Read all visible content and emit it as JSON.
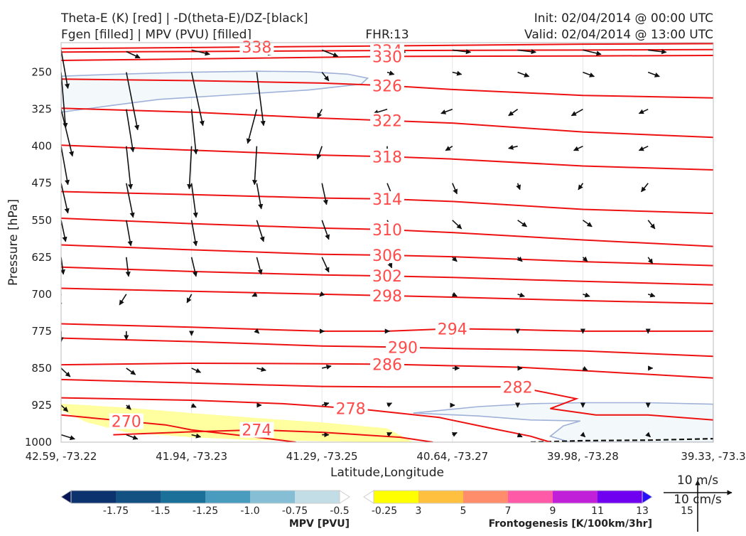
{
  "header": {
    "title_left_line1": "Theta-E (K) [red] | -D(theta-E)/DZ-[black]",
    "title_left_line2": "Fgen [filled] | MPV (PVU) [filled]",
    "fhr": "FHR:13",
    "init": "Init: 02/04/2014 @ 00:00 UTC",
    "valid": "Valid: 02/04/2014 @ 13:00 UTC"
  },
  "chart_data": {
    "type": "cross-section",
    "xlabel": "Latitude,Longitude",
    "ylabel": "Pressure [hPa]",
    "x_ticks": [
      "42.59, -73.22",
      "41.94, -73.23",
      "41.29, -73.25",
      "40.64, -73.27",
      "39.98, -73.28",
      "39.33, -73.3"
    ],
    "y_ticks": [
      250,
      325,
      400,
      475,
      550,
      625,
      700,
      775,
      850,
      925,
      1000
    ],
    "ylim": [
      1000,
      190
    ],
    "theta_e_contours": [
      {
        "level": 338,
        "label": "338",
        "x": [
          0,
          1.0,
          2.7,
          4.0,
          5.0
        ],
        "p": [
          202,
          200,
          196,
          193,
          192
        ]
      },
      {
        "level": 334,
        "label": "334",
        "x": [
          0,
          1.0,
          2.5,
          4.0,
          5.0
        ],
        "p": [
          209,
          208,
          206,
          205,
          204
        ]
      },
      {
        "level": 330,
        "label": "330",
        "x": [
          0,
          1.0,
          2.5,
          4.0,
          5.0
        ],
        "p": [
          226,
          223,
          218,
          217,
          216
        ]
      },
      {
        "level": 326,
        "label": "326",
        "x": [
          0,
          1.0,
          2.0,
          2.5,
          3.0,
          4.0,
          5.0
        ],
        "p": [
          264,
          267,
          272,
          277,
          285,
          297,
          302
        ]
      },
      {
        "level": 322,
        "label": "322",
        "x": [
          0,
          1.0,
          2.0,
          2.5,
          3.0,
          4.0,
          5.0
        ],
        "p": [
          323,
          331,
          343,
          348,
          353,
          371,
          382
        ]
      },
      {
        "level": 318,
        "label": "318",
        "x": [
          0,
          1.0,
          2.0,
          2.5,
          3.0,
          4.0,
          5.0
        ],
        "p": [
          398,
          408,
          418,
          421,
          426,
          440,
          448
        ]
      },
      {
        "level": 314,
        "label": "314",
        "x": [
          0,
          1.0,
          2.0,
          2.5,
          3.0,
          4.0,
          5.0
        ],
        "p": [
          492,
          498,
          505,
          507,
          512,
          528,
          536
        ]
      },
      {
        "level": 310,
        "label": "310",
        "x": [
          0,
          1.0,
          2.0,
          2.5,
          3.0,
          4.0,
          5.0
        ],
        "p": [
          546,
          557,
          566,
          569,
          575,
          590,
          603
        ]
      },
      {
        "level": 306,
        "label": "306",
        "x": [
          0,
          1.0,
          2.0,
          2.5,
          3.0,
          4.0,
          5.0
        ],
        "p": [
          600,
          610,
          619,
          621,
          624,
          634,
          642
        ]
      },
      {
        "level": 302,
        "label": "302",
        "x": [
          0,
          1.0,
          2.0,
          2.5,
          3.0,
          4.0,
          5.0
        ],
        "p": [
          645,
          654,
          661,
          663,
          666,
          674,
          681
        ]
      },
      {
        "level": 298,
        "label": "298",
        "x": [
          0,
          1.0,
          2.0,
          2.5,
          3.0,
          4.0,
          5.0
        ],
        "p": [
          688,
          694,
          700,
          703,
          706,
          713,
          719
        ]
      },
      {
        "level": 294,
        "label": "294",
        "x": [
          0,
          1.0,
          2.0,
          2.5,
          3.0,
          3.5,
          4.0,
          5.0
        ],
        "p": [
          760,
          767,
          775,
          775,
          770,
          772,
          775,
          775
        ]
      },
      {
        "level": 290,
        "label": "290",
        "x": [
          0,
          1.0,
          2.0,
          2.5,
          3.0,
          3.5,
          4.0,
          5.0
        ],
        "p": [
          789,
          796,
          805,
          807,
          810,
          812,
          815,
          826
        ]
      },
      {
        "level": 286,
        "label": "286",
        "x": [
          0,
          1.0,
          2.0,
          2.5,
          3.0,
          3.5,
          4.0,
          5.0
        ],
        "p": [
          843,
          840,
          841,
          842,
          845,
          848,
          855,
          870
        ]
      },
      {
        "level": 282,
        "label": "282",
        "x": [
          0,
          1.0,
          2.0,
          2.5,
          3.0,
          3.5,
          3.95,
          3.75,
          4.1,
          4.5,
          5.0
        ],
        "p": [
          873,
          880,
          887,
          888,
          888,
          888,
          912,
          932,
          945,
          945,
          955
        ]
      },
      {
        "level": 278,
        "label": "278",
        "x": [
          0,
          1.0,
          1.7,
          2.3,
          2.9,
          3.3,
          3.6,
          3.75
        ],
        "p": [
          910,
          915,
          922,
          933,
          950,
          972,
          988,
          1000
        ]
      },
      {
        "level": 274,
        "label": "274",
        "x": [
          0.4,
          1.0,
          1.5,
          2.0,
          2.6,
          2.85
        ],
        "p": [
          985,
          979,
          975,
          980,
          990,
          1000
        ]
      },
      {
        "level": 270,
        "label": "270",
        "x": [
          0,
          0.4,
          0.8,
          1.0,
          1.5,
          1.8
        ],
        "p": [
          945,
          955,
          965,
          975,
          990,
          1000
        ]
      }
    ],
    "mpv_regions": [
      {
        "value": -0.25,
        "x": [
          0,
          0.42,
          1.0,
          1.5,
          1.9,
          2.2,
          2.35,
          2.3,
          1.9,
          1.3,
          0.75,
          0.4,
          0.0
        ],
        "p": [
          258,
          254,
          250,
          248,
          249,
          254,
          262,
          274,
          286,
          296,
          305,
          317,
          331
        ]
      },
      {
        "value": -0.25,
        "x": [
          2.7,
          3.2,
          3.6,
          4.0,
          4.5,
          5.0,
          5.0,
          3.9,
          3.75,
          3.85,
          3.98,
          3.6,
          3.2
        ],
        "p": [
          941,
          928,
          922,
          920,
          920,
          923,
          1000,
          1000,
          988,
          967,
          957,
          955,
          947
        ]
      }
    ],
    "fgen_regions": [
      {
        "value": 3,
        "x": [
          0,
          0.5,
          1.0,
          1.5,
          2.0,
          2.5,
          2.7,
          2.5,
          2.0,
          1.5,
          1.0,
          0.5,
          0.2,
          0.0
        ],
        "p": [
          922,
          930,
          941,
          951,
          960,
          972,
          1000,
          1000,
          998,
          996,
          990,
          980,
          960,
          935
        ]
      }
    ],
    "ddz_zero_contour": {
      "x": [
        3.6,
        4.0,
        4.5,
        5.0
      ],
      "p": [
        1000,
        997,
        996,
        993
      ]
    },
    "wind_vectors": [
      {
        "x": 0.0,
        "p": 205,
        "u": 3,
        "v": -18
      },
      {
        "x": 0.5,
        "p": 208,
        "u": 6,
        "v": -3
      },
      {
        "x": 1.0,
        "p": 205,
        "u": 8,
        "v": -2
      },
      {
        "x": 1.5,
        "p": 205,
        "u": 7,
        "v": -2
      },
      {
        "x": 2.0,
        "p": 205,
        "u": 7,
        "v": -3
      },
      {
        "x": 2.5,
        "p": 205,
        "u": 8,
        "v": -1
      },
      {
        "x": 3.0,
        "p": 205,
        "u": 8,
        "v": -1
      },
      {
        "x": 3.5,
        "p": 205,
        "u": 8,
        "v": -1
      },
      {
        "x": 4.0,
        "p": 205,
        "u": 8,
        "v": -2
      },
      {
        "x": 4.5,
        "p": 205,
        "u": 8,
        "v": -1
      },
      {
        "x": 0.0,
        "p": 250,
        "u": 2,
        "v": -26
      },
      {
        "x": 0.5,
        "p": 250,
        "u": 5,
        "v": -27
      },
      {
        "x": 1.0,
        "p": 250,
        "u": 5,
        "v": -25
      },
      {
        "x": 1.5,
        "p": 250,
        "u": 3,
        "v": -25
      },
      {
        "x": 2.0,
        "p": 250,
        "u": 3,
        "v": -4
      },
      {
        "x": 2.5,
        "p": 250,
        "u": 3,
        "v": -1
      },
      {
        "x": 3.0,
        "p": 250,
        "u": 4,
        "v": -1
      },
      {
        "x": 3.5,
        "p": 250,
        "u": 5,
        "v": -2
      },
      {
        "x": 4.0,
        "p": 250,
        "u": 5,
        "v": -2
      },
      {
        "x": 4.5,
        "p": 250,
        "u": 5,
        "v": -2
      },
      {
        "x": 0.0,
        "p": 325,
        "u": 5,
        "v": -22
      },
      {
        "x": 0.5,
        "p": 325,
        "u": 3,
        "v": -20
      },
      {
        "x": 1.0,
        "p": 325,
        "u": 2,
        "v": -21
      },
      {
        "x": 1.5,
        "p": 325,
        "u": -4,
        "v": -16
      },
      {
        "x": 2.0,
        "p": 325,
        "u": -2,
        "v": -4
      },
      {
        "x": 2.5,
        "p": 325,
        "u": -6,
        "v": -2
      },
      {
        "x": 3.0,
        "p": 325,
        "u": -5,
        "v": -2
      },
      {
        "x": 3.5,
        "p": 325,
        "u": -4,
        "v": -3
      },
      {
        "x": 4.0,
        "p": 325,
        "u": -5,
        "v": -3
      },
      {
        "x": 4.5,
        "p": 325,
        "u": -4,
        "v": -2
      },
      {
        "x": 0.0,
        "p": 400,
        "u": 3,
        "v": -18
      },
      {
        "x": 0.5,
        "p": 400,
        "u": 2,
        "v": -20
      },
      {
        "x": 1.0,
        "p": 400,
        "u": -1,
        "v": -20
      },
      {
        "x": 1.5,
        "p": 400,
        "u": -1,
        "v": -18
      },
      {
        "x": 2.0,
        "p": 400,
        "u": -2,
        "v": -6
      },
      {
        "x": 2.5,
        "p": 400,
        "u": 0,
        "v": -4
      },
      {
        "x": 3.0,
        "p": 400,
        "u": -3,
        "v": -2
      },
      {
        "x": 3.5,
        "p": 400,
        "u": -4,
        "v": -1
      },
      {
        "x": 4.0,
        "p": 400,
        "u": -4,
        "v": -2
      },
      {
        "x": 4.5,
        "p": 400,
        "u": -4,
        "v": -2
      },
      {
        "x": 0.0,
        "p": 475,
        "u": 3,
        "v": -14
      },
      {
        "x": 0.5,
        "p": 475,
        "u": 3,
        "v": -16
      },
      {
        "x": 1.0,
        "p": 475,
        "u": 2,
        "v": -16
      },
      {
        "x": 1.5,
        "p": 475,
        "u": 2,
        "v": -12
      },
      {
        "x": 2.0,
        "p": 475,
        "u": 2,
        "v": -10
      },
      {
        "x": 2.5,
        "p": 475,
        "u": 3,
        "v": -8
      },
      {
        "x": 3.0,
        "p": 475,
        "u": 2,
        "v": -5
      },
      {
        "x": 3.5,
        "p": 475,
        "u": 1,
        "v": -3
      },
      {
        "x": 4.0,
        "p": 475,
        "u": -2,
        "v": -3
      },
      {
        "x": 4.5,
        "p": 475,
        "u": -3,
        "v": -4
      },
      {
        "x": 0.0,
        "p": 550,
        "u": 2,
        "v": -10
      },
      {
        "x": 0.5,
        "p": 550,
        "u": 2,
        "v": -12
      },
      {
        "x": 1.0,
        "p": 550,
        "u": 2,
        "v": -12
      },
      {
        "x": 1.5,
        "p": 550,
        "u": 3,
        "v": -10
      },
      {
        "x": 2.0,
        "p": 550,
        "u": 3,
        "v": -9
      },
      {
        "x": 2.5,
        "p": 550,
        "u": 3,
        "v": -6
      },
      {
        "x": 3.0,
        "p": 550,
        "u": 4,
        "v": -4
      },
      {
        "x": 3.5,
        "p": 550,
        "u": 4,
        "v": -3
      },
      {
        "x": 4.0,
        "p": 550,
        "u": 4,
        "v": -3
      },
      {
        "x": 4.5,
        "p": 550,
        "u": 3,
        "v": -4
      },
      {
        "x": 0.0,
        "p": 625,
        "u": 1,
        "v": -8
      },
      {
        "x": 0.5,
        "p": 625,
        "u": 1,
        "v": -9
      },
      {
        "x": 1.0,
        "p": 625,
        "u": 2,
        "v": -9
      },
      {
        "x": 1.5,
        "p": 625,
        "u": 2,
        "v": -8
      },
      {
        "x": 2.0,
        "p": 625,
        "u": 3,
        "v": -7
      },
      {
        "x": 2.5,
        "p": 625,
        "u": 2,
        "v": -5
      },
      {
        "x": 3.0,
        "p": 625,
        "u": 2,
        "v": -2
      },
      {
        "x": 3.5,
        "p": 625,
        "u": 2,
        "v": -2
      },
      {
        "x": 4.0,
        "p": 625,
        "u": 2,
        "v": -2
      },
      {
        "x": 4.5,
        "p": 625,
        "u": 2,
        "v": -3
      },
      {
        "x": 0.0,
        "p": 700,
        "u": -1,
        "v": -6
      },
      {
        "x": 0.5,
        "p": 700,
        "u": -3,
        "v": -5
      },
      {
        "x": 1.0,
        "p": 700,
        "u": -2,
        "v": -4
      },
      {
        "x": 1.5,
        "p": 700,
        "u": -2,
        "v": -1
      },
      {
        "x": 2.0,
        "p": 700,
        "u": -1,
        "v": -1
      },
      {
        "x": 2.5,
        "p": 700,
        "u": 0,
        "v": -1
      },
      {
        "x": 3.0,
        "p": 700,
        "u": 2,
        "v": -1
      },
      {
        "x": 3.5,
        "p": 700,
        "u": 3,
        "v": -1
      },
      {
        "x": 4.0,
        "p": 700,
        "u": 3,
        "v": -1
      },
      {
        "x": 4.5,
        "p": 700,
        "u": 3,
        "v": -1
      },
      {
        "x": 0.0,
        "p": 775,
        "u": 0,
        "v": -5
      },
      {
        "x": 0.5,
        "p": 775,
        "u": 0,
        "v": -4
      },
      {
        "x": 1.0,
        "p": 775,
        "u": 0,
        "v": -2
      },
      {
        "x": 1.5,
        "p": 775,
        "u": 1,
        "v": -1
      },
      {
        "x": 2.0,
        "p": 775,
        "u": 1,
        "v": 0
      },
      {
        "x": 2.5,
        "p": 775,
        "u": 1,
        "v": 0
      },
      {
        "x": 3.0,
        "p": 775,
        "u": 1,
        "v": 0
      },
      {
        "x": 3.5,
        "p": 775,
        "u": 0,
        "v": -1
      },
      {
        "x": 4.0,
        "p": 775,
        "u": 0,
        "v": -1
      },
      {
        "x": 4.5,
        "p": 775,
        "u": 0,
        "v": -1
      },
      {
        "x": 0.0,
        "p": 850,
        "u": 4,
        "v": -4
      },
      {
        "x": 0.5,
        "p": 850,
        "u": 4,
        "v": -3
      },
      {
        "x": 1.0,
        "p": 850,
        "u": 4,
        "v": -2
      },
      {
        "x": 1.5,
        "p": 850,
        "u": 4,
        "v": -1
      },
      {
        "x": 2.0,
        "p": 850,
        "u": 4,
        "v": 1
      },
      {
        "x": 2.5,
        "p": 850,
        "u": 3,
        "v": 0
      },
      {
        "x": 3.0,
        "p": 850,
        "u": 3,
        "v": 0
      },
      {
        "x": 3.5,
        "p": 850,
        "u": 2,
        "v": 0
      },
      {
        "x": 4.0,
        "p": 850,
        "u": 2,
        "v": -1
      },
      {
        "x": 4.5,
        "p": 850,
        "u": 2,
        "v": 0
      },
      {
        "x": 0.0,
        "p": 925,
        "u": 3,
        "v": -3
      },
      {
        "x": 0.5,
        "p": 925,
        "u": 2,
        "v": -2
      },
      {
        "x": 1.0,
        "p": 925,
        "u": 2,
        "v": -1
      },
      {
        "x": 1.5,
        "p": 925,
        "u": 2,
        "v": 0
      },
      {
        "x": 2.0,
        "p": 925,
        "u": 3,
        "v": 1
      },
      {
        "x": 2.5,
        "p": 925,
        "u": 2,
        "v": 1
      },
      {
        "x": 3.0,
        "p": 925,
        "u": 1,
        "v": 0
      },
      {
        "x": 3.5,
        "p": 925,
        "u": 0,
        "v": -1
      },
      {
        "x": 4.0,
        "p": 925,
        "u": 0,
        "v": -1
      },
      {
        "x": 4.5,
        "p": 925,
        "u": 0,
        "v": -1
      },
      {
        "x": 0.0,
        "p": 985,
        "u": 6,
        "v": -2
      },
      {
        "x": 0.5,
        "p": 985,
        "u": 5,
        "v": -2
      },
      {
        "x": 1.0,
        "p": 985,
        "u": 4,
        "v": -1
      },
      {
        "x": 1.5,
        "p": 985,
        "u": 3,
        "v": 0
      },
      {
        "x": 2.0,
        "p": 985,
        "u": 3,
        "v": 0
      },
      {
        "x": 2.5,
        "p": 985,
        "u": 2,
        "v": 1
      },
      {
        "x": 3.0,
        "p": 985,
        "u": 2,
        "v": 1
      },
      {
        "x": 3.5,
        "p": 985,
        "u": 2,
        "v": -1
      },
      {
        "x": 4.0,
        "p": 985,
        "u": 1,
        "v": -1
      },
      {
        "x": 4.5,
        "p": 985,
        "u": 1,
        "v": -1
      }
    ],
    "colorbars": {
      "mpv": {
        "title": "MPV [PVU]",
        "tick_labels": [
          "-1.75",
          "-1.5",
          "-1.25",
          "-1.0",
          "-0.75",
          "-0.5",
          "-0.25"
        ],
        "colors": [
          "#071758",
          "#0d336f",
          "#135183",
          "#1a7098",
          "#4a9cbf",
          "#86bed6",
          "#c3dde7",
          "#ffffff"
        ]
      },
      "fgen": {
        "title": "Frontogenesis [K/100km/3hr]",
        "tick_labels": [
          "3",
          "5",
          "7",
          "9",
          "11",
          "13",
          "15"
        ],
        "colors": [
          "#ffffff",
          "#ffff00",
          "#ffc040",
          "#ff8c6a",
          "#ff5aa8",
          "#c020d8",
          "#7000f0",
          "#2810f8"
        ]
      }
    },
    "wind_key": {
      "u_label": "10 m/s",
      "w_label": "10 cm/s"
    }
  }
}
